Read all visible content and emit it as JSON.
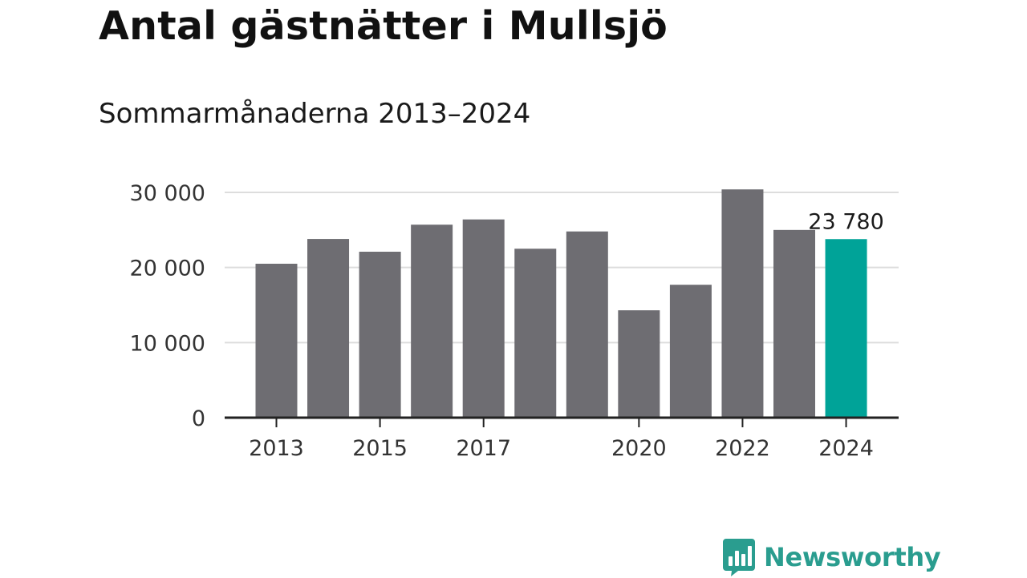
{
  "title": "Antal gästnätter i Mullsjö",
  "subtitle": "Sommarmånaderna 2013–2024",
  "colors": {
    "bar": "#6e6d72",
    "highlight": "#00a398",
    "grid": "#dddddd",
    "axis": "#222222",
    "brand": "#2a9d8f"
  },
  "chart_data": {
    "type": "bar",
    "categories": [
      "2013",
      "2014",
      "2015",
      "2016",
      "2017",
      "2018",
      "2019",
      "2020",
      "2021",
      "2022",
      "2023",
      "2024"
    ],
    "values": [
      20500,
      23800,
      22100,
      25700,
      26400,
      22500,
      24800,
      14300,
      17700,
      30400,
      25000,
      23780
    ],
    "highlight_index": 11,
    "x_tick_labels": [
      "2013",
      "2015",
      "2017",
      "2020",
      "2022",
      "2024"
    ],
    "y_ticks": [
      0,
      10000,
      20000,
      30000
    ],
    "y_tick_labels": [
      "0",
      "10 000",
      "20 000",
      "30 000"
    ],
    "ylim": [
      0,
      30000
    ],
    "grid": true,
    "data_labels": [
      {
        "category": "2024",
        "text": "23 780"
      }
    ]
  },
  "logo": {
    "text": "Newsworthy",
    "icon": "bar-chart-speech-bubble-icon"
  }
}
